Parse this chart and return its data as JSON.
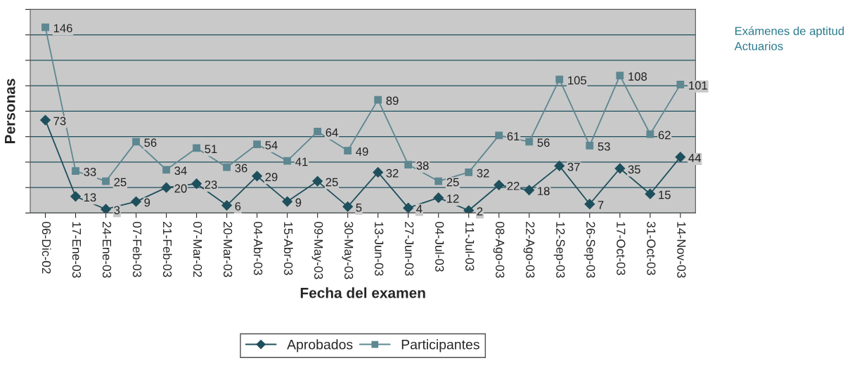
{
  "chart_data": {
    "type": "line",
    "xlabel": "Fecha del examen",
    "ylabel": "Personas",
    "categories": [
      "06-Dic-02",
      "17-Ene-03",
      "24-Ene-03",
      "07-Feb-03",
      "21-Feb-03",
      "07-Mar-02",
      "20-Mar-03",
      "04-Abr-03",
      "15-Abr-03",
      "09-May-03",
      "30-May-03",
      "13-Jun-03",
      "27-Jun-03",
      "04-Jul-03",
      "11-Jul-03",
      "08-Ago-03",
      "22-Ago-03",
      "12-Sep-03",
      "26-Sep-03",
      "17-Oct-03",
      "31-Oct-03",
      "14-Nov-03"
    ],
    "series": [
      {
        "name": "Aprobados",
        "color": "#1e4f5c",
        "marker": "diamond",
        "values": [
          73,
          13,
          3,
          9,
          20,
          23,
          6,
          29,
          9,
          25,
          5,
          32,
          4,
          12,
          2,
          22,
          18,
          37,
          7,
          35,
          15,
          44
        ]
      },
      {
        "name": "Participantes",
        "color": "#5d8791",
        "marker": "square",
        "values": [
          146,
          33,
          25,
          56,
          34,
          51,
          36,
          54,
          41,
          64,
          49,
          89,
          38,
          25,
          32,
          61,
          56,
          105,
          53,
          108,
          62,
          101
        ]
      }
    ],
    "ylim": [
      0,
      160
    ],
    "yticks": [
      {
        "value": 0,
        "label": null
      },
      {
        "value": 20,
        "label": null
      },
      {
        "value": 40,
        "label": null
      },
      {
        "value": 60,
        "label": null
      },
      {
        "value": 80,
        "label": null
      },
      {
        "value": 100,
        "label": null
      },
      {
        "value": 120,
        "label": null
      },
      {
        "value": 140,
        "label": null
      },
      {
        "value": 160,
        "label": null
      }
    ],
    "grid": "y",
    "legend": "bottom",
    "data_labels": true,
    "line_style": "solid",
    "annotations": [
      "Exámenes de aptitud\nActuarios"
    ]
  }
}
